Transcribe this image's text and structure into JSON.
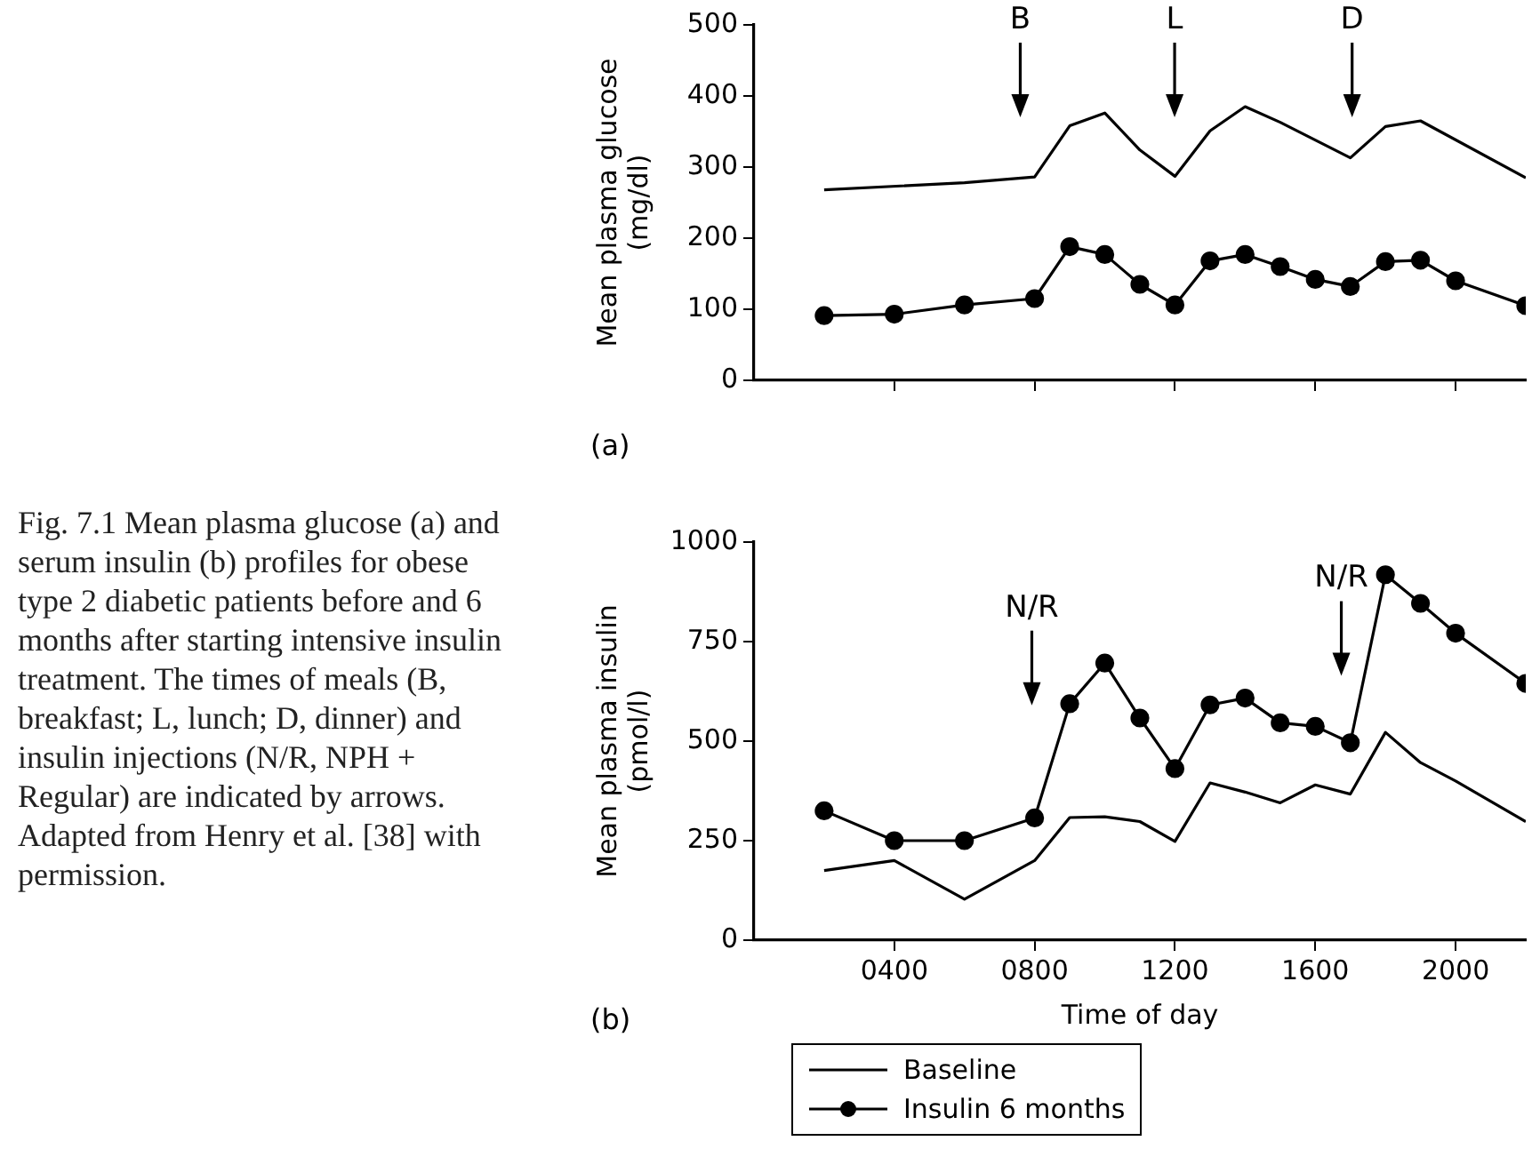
{
  "chart_data": [
    {
      "type": "line",
      "ylabel": "Mean plasma glucose (mg/dl)",
      "xlim": [
        0,
        2200
      ],
      "ylim": [
        0,
        500
      ],
      "xticks": [
        {
          "value": 400,
          "label": null
        },
        {
          "value": 800,
          "label": null
        },
        {
          "value": 1200,
          "label": null
        },
        {
          "value": 1600,
          "label": null
        },
        {
          "value": 2000,
          "label": null
        }
      ],
      "yticks": [
        0,
        100,
        200,
        300,
        400,
        500
      ],
      "tick_labels": "y",
      "grid": false,
      "legend": false,
      "annotations": [
        "(a)",
        "B",
        "L",
        "D"
      ],
      "series": [
        {
          "color": "#000000",
          "marker": "none",
          "x": [
            200,
            600,
            800,
            900,
            1000,
            1100,
            1200,
            1300,
            1400,
            1500,
            1700,
            1800,
            1900,
            2200
          ],
          "values": [
            268,
            278,
            286,
            358,
            376,
            324,
            287,
            351,
            385,
            363,
            313,
            357,
            365,
            285
          ]
        },
        {
          "color": "#000000",
          "marker": "circle",
          "x": [
            200,
            400,
            600,
            800,
            900,
            1000,
            1100,
            1200,
            1300,
            1400,
            1500,
            1600,
            1700,
            1800,
            1900,
            2000,
            2200
          ],
          "values": [
            91,
            93,
            106,
            115,
            188,
            177,
            135,
            106,
            168,
            177,
            160,
            142,
            132,
            167,
            169,
            140,
            105
          ]
        }
      ]
    },
    {
      "type": "line",
      "xlabel": "Time of day",
      "ylabel": "Mean plasma insulin (pmol/l)",
      "xlim": [
        0,
        2200
      ],
      "ylim": [
        0,
        1000
      ],
      "xticks": [
        {
          "value": 400,
          "label": "0400"
        },
        {
          "value": 800,
          "label": "0800"
        },
        {
          "value": 1200,
          "label": "1200"
        },
        {
          "value": 1600,
          "label": "1600"
        },
        {
          "value": 2000,
          "label": "2000"
        }
      ],
      "yticks": [
        0,
        250,
        500,
        750,
        1000
      ],
      "grid": false,
      "legend": "bottom",
      "annotations": [
        "(b)",
        "N/R",
        "N/R",
        "Fig. 7.1 Mean plasma glucose (a) and serum insulin (b) profiles for obese type 2 diabetic patients before and 6 months after starting intensive insulin treatment. The times of meals (B, breakfast; L, lunch; D, dinner) and insulin injections (N/R, NPH + Regular) are indicated by arrows. Adapted from Henry et al. [38] with permission."
      ],
      "series": [
        {
          "name": "Baseline",
          "color": "#000000",
          "marker": "none",
          "x": [
            200,
            400,
            600,
            800,
            900,
            1000,
            1100,
            1200,
            1300,
            1400,
            1500,
            1600,
            1700,
            1800,
            1900,
            2000,
            2200
          ],
          "values": [
            175,
            200,
            103,
            200,
            308,
            310,
            298,
            248,
            395,
            372,
            345,
            390,
            367,
            522,
            446,
            400,
            298
          ]
        },
        {
          "name": "Insulin 6 months",
          "color": "#000000",
          "marker": "circle",
          "x": [
            200,
            400,
            600,
            800,
            900,
            1000,
            1100,
            1200,
            1300,
            1400,
            1500,
            1600,
            1700,
            1800,
            1900,
            2000,
            2200
          ],
          "values": [
            325,
            250,
            250,
            307,
            594,
            696,
            558,
            431,
            591,
            608,
            546,
            537,
            496,
            918,
            846,
            771,
            645
          ]
        }
      ]
    }
  ]
}
